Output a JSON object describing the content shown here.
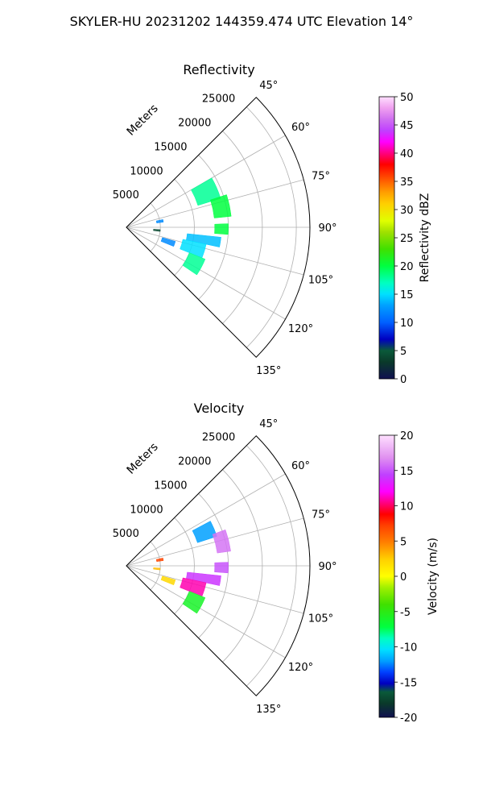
{
  "figure": {
    "title": "SKYLER-HU  20231202  144359.474 UTC Elevation 14°"
  },
  "chart_data": [
    {
      "type": "polar-sector",
      "title": "Reflectivity",
      "range_axis_label": "Meters",
      "range_ticks": [
        5000,
        10000,
        15000,
        20000,
        25000
      ],
      "range_max": 27000,
      "azimuth_range": [
        45,
        135
      ],
      "azimuth_ticks": [
        "45°",
        "60°",
        "75°",
        "90°",
        "105°",
        "120°",
        "135°"
      ],
      "grid": true,
      "colorbar": {
        "label": "Reflectivity dBZ",
        "min": 0,
        "max": 50,
        "ticks": [
          0,
          5,
          10,
          15,
          20,
          25,
          30,
          35,
          40,
          45,
          50
        ]
      },
      "echo_regions": [
        {
          "az_start": 60,
          "az_end": 73,
          "r_start": 11000,
          "r_end": 14500,
          "value": 18
        },
        {
          "az_start": 72,
          "az_end": 84,
          "r_start": 13000,
          "r_end": 15500,
          "value": 20
        },
        {
          "az_start": 88,
          "az_end": 94,
          "r_start": 13000,
          "r_end": 15000,
          "value": 20
        },
        {
          "az_start": 96,
          "az_end": 102,
          "r_start": 9000,
          "r_end": 14000,
          "value": 14
        },
        {
          "az_start": 102,
          "az_end": 112,
          "r_start": 8500,
          "r_end": 12000,
          "value": 15
        },
        {
          "az_start": 112,
          "az_end": 124,
          "r_start": 10000,
          "r_end": 12500,
          "value": 18
        },
        {
          "az_start": 78,
          "az_end": 82,
          "r_start": 4500,
          "r_end": 5500,
          "value": 12
        },
        {
          "az_start": 94,
          "az_end": 97,
          "r_start": 4000,
          "r_end": 5000,
          "value": 4
        },
        {
          "az_start": 106,
          "az_end": 112,
          "r_start": 5500,
          "r_end": 7500,
          "value": 12
        }
      ]
    },
    {
      "type": "polar-sector",
      "title": "Velocity",
      "range_axis_label": "Meters",
      "range_ticks": [
        5000,
        10000,
        15000,
        20000,
        25000
      ],
      "range_max": 27000,
      "azimuth_range": [
        45,
        135
      ],
      "azimuth_ticks": [
        "45°",
        "60°",
        "75°",
        "90°",
        "105°",
        "120°",
        "135°"
      ],
      "grid": true,
      "colorbar": {
        "label": "Velocity (m/s)",
        "min": -20,
        "max": 20,
        "ticks": [
          -20,
          -15,
          -10,
          -5,
          0,
          5,
          10,
          15,
          20
        ]
      },
      "echo_regions": [
        {
          "az_start": 62,
          "az_end": 72,
          "r_start": 11000,
          "r_end": 14000,
          "value": -12
        },
        {
          "az_start": 70,
          "az_end": 82,
          "r_start": 13500,
          "r_end": 15500,
          "value": 16
        },
        {
          "az_start": 88,
          "az_end": 94,
          "r_start": 13000,
          "r_end": 15000,
          "value": 15
        },
        {
          "az_start": 96,
          "az_end": 102,
          "r_start": 9000,
          "r_end": 14000,
          "value": 14
        },
        {
          "az_start": 102,
          "az_end": 112,
          "r_start": 8500,
          "r_end": 12000,
          "value": 11
        },
        {
          "az_start": 112,
          "az_end": 124,
          "r_start": 10000,
          "r_end": 12500,
          "value": -6
        },
        {
          "az_start": 78,
          "az_end": 82,
          "r_start": 4500,
          "r_end": 5500,
          "value": 7
        },
        {
          "az_start": 94,
          "az_end": 97,
          "r_start": 4000,
          "r_end": 5000,
          "value": 3
        },
        {
          "az_start": 106,
          "az_end": 112,
          "r_start": 5500,
          "r_end": 7500,
          "value": 2
        }
      ]
    }
  ]
}
